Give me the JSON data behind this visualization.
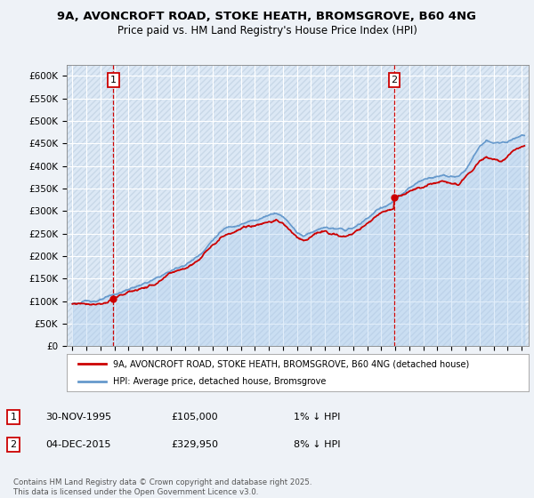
{
  "title_line1": "9A, AVONCROFT ROAD, STOKE HEATH, BROMSGROVE, B60 4NG",
  "title_line2": "Price paid vs. HM Land Registry's House Price Index (HPI)",
  "yticks": [
    0,
    50000,
    100000,
    150000,
    200000,
    250000,
    300000,
    350000,
    400000,
    450000,
    500000,
    550000,
    600000
  ],
  "ytick_labels": [
    "£0",
    "£50K",
    "£100K",
    "£150K",
    "£200K",
    "£250K",
    "£300K",
    "£350K",
    "£400K",
    "£450K",
    "£500K",
    "£550K",
    "£600K"
  ],
  "ylim": [
    0,
    625000
  ],
  "sale1_date": 1995.92,
  "sale1_price": 105000,
  "sale2_date": 2015.92,
  "sale2_price": 329950,
  "hpi_line_color": "#6699cc",
  "price_color": "#cc0000",
  "annotation_color": "#cc0000",
  "plot_bg_color": "#ddeeff",
  "fig_bg_color": "#f0f4f8",
  "legend_label1": "9A, AVONCROFT ROAD, STOKE HEATH, BROMSGROVE, B60 4NG (detached house)",
  "legend_label2": "HPI: Average price, detached house, Bromsgrove",
  "footnote": "Contains HM Land Registry data © Crown copyright and database right 2025.\nThis data is licensed under the Open Government Licence v3.0.",
  "xmin": 1993,
  "xmax": 2025,
  "hpi_years": [
    1993,
    1993.5,
    1994,
    1994.5,
    1995,
    1995.5,
    1996,
    1996.5,
    1997,
    1997.5,
    1998,
    1998.5,
    1999,
    1999.5,
    2000,
    2000.5,
    2001,
    2001.5,
    2002,
    2002.5,
    2003,
    2003.5,
    2004,
    2004.5,
    2005,
    2005.5,
    2006,
    2006.5,
    2007,
    2007.5,
    2008,
    2008.5,
    2009,
    2009.5,
    2010,
    2010.5,
    2011,
    2011.5,
    2012,
    2012.5,
    2013,
    2013.5,
    2014,
    2014.5,
    2015,
    2015.5,
    2016,
    2016.5,
    2017,
    2017.5,
    2018,
    2018.5,
    2019,
    2019.5,
    2020,
    2020.5,
    2021,
    2021.5,
    2022,
    2022.5,
    2023,
    2023.5,
    2024,
    2024.5,
    2025
  ],
  "hpi_vals": [
    95000,
    97000,
    99000,
    101500,
    104000,
    107000,
    112000,
    118000,
    124000,
    130000,
    136000,
    141000,
    147000,
    155000,
    163000,
    170000,
    178000,
    188000,
    200000,
    218000,
    238000,
    253000,
    264000,
    271000,
    276000,
    280000,
    284000,
    290000,
    298000,
    305000,
    298000,
    284000,
    265000,
    258000,
    268000,
    275000,
    278000,
    276000,
    272000,
    270000,
    274000,
    282000,
    295000,
    308000,
    318000,
    325000,
    334000,
    345000,
    356000,
    365000,
    372000,
    378000,
    382000,
    386000,
    382000,
    380000,
    395000,
    418000,
    445000,
    455000,
    450000,
    448000,
    458000,
    468000,
    478000
  ],
  "price_years": [
    1993,
    1993.5,
    1994,
    1994.5,
    1995,
    1995.5,
    1996,
    1996.5,
    1997,
    1997.5,
    1998,
    1998.5,
    1999,
    1999.5,
    2000,
    2000.5,
    2001,
    2001.5,
    2002,
    2002.5,
    2003,
    2003.5,
    2004,
    2004.5,
    2005,
    2005.5,
    2006,
    2006.5,
    2007,
    2007.5,
    2008,
    2008.5,
    2009,
    2009.5,
    2010,
    2010.5,
    2011,
    2011.5,
    2012,
    2012.5,
    2013,
    2013.5,
    2014,
    2014.5,
    2015,
    2015.5,
    2016,
    2016.5,
    2017,
    2017.5,
    2018,
    2018.5,
    2019,
    2019.5,
    2020,
    2020.5,
    2021,
    2021.5,
    2022,
    2022.5,
    2023,
    2023.5,
    2024,
    2024.5,
    2025
  ],
  "price_vals": [
    93000,
    95000,
    97000,
    99000,
    102000,
    105000,
    110000,
    116000,
    122000,
    128000,
    133000,
    138000,
    144000,
    151000,
    159000,
    166000,
    174000,
    183000,
    195000,
    213000,
    233000,
    248000,
    260000,
    268000,
    274000,
    278000,
    282000,
    287000,
    294000,
    296000,
    287000,
    272000,
    254000,
    247000,
    257000,
    263000,
    265000,
    263000,
    259000,
    257000,
    261000,
    270000,
    283000,
    297000,
    308000,
    316000,
    322000,
    328000,
    333000,
    337000,
    341000,
    346000,
    350000,
    354000,
    350000,
    349000,
    362000,
    380000,
    400000,
    408000,
    403000,
    401000,
    410000,
    418000,
    425000
  ]
}
